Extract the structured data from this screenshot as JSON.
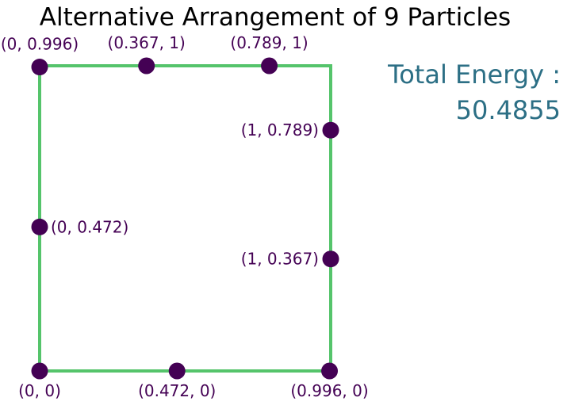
{
  "chart_data": {
    "type": "scatter",
    "title": "Alternative Arrangement of 9 Particles",
    "xlabel": "",
    "ylabel": "",
    "xlim": [
      0,
      1
    ],
    "ylim": [
      0,
      1
    ],
    "grid": false,
    "boundary": {
      "shape": "unit-square",
      "color": "#55c46b"
    },
    "point_color": "#440154",
    "label_color": "#440154",
    "points": [
      {
        "x": 0,
        "y": 0.996,
        "label": "(0, 0.996)"
      },
      {
        "x": 0.367,
        "y": 1,
        "label": "(0.367, 1)"
      },
      {
        "x": 0.789,
        "y": 1,
        "label": "(0.789, 1)"
      },
      {
        "x": 1,
        "y": 0.789,
        "label": "(1, 0.789)"
      },
      {
        "x": 0,
        "y": 0.472,
        "label": "(0, 0.472)"
      },
      {
        "x": 1,
        "y": 0.367,
        "label": "(1, 0.367)"
      },
      {
        "x": 0,
        "y": 0,
        "label": "(0, 0)"
      },
      {
        "x": 0.472,
        "y": 0,
        "label": "(0.472, 0)"
      },
      {
        "x": 0.996,
        "y": 0,
        "label": "(0.996, 0)"
      }
    ],
    "annotation": {
      "line1": "Total Energy :",
      "line2": "50.4855",
      "color": "#2c6f85"
    }
  }
}
